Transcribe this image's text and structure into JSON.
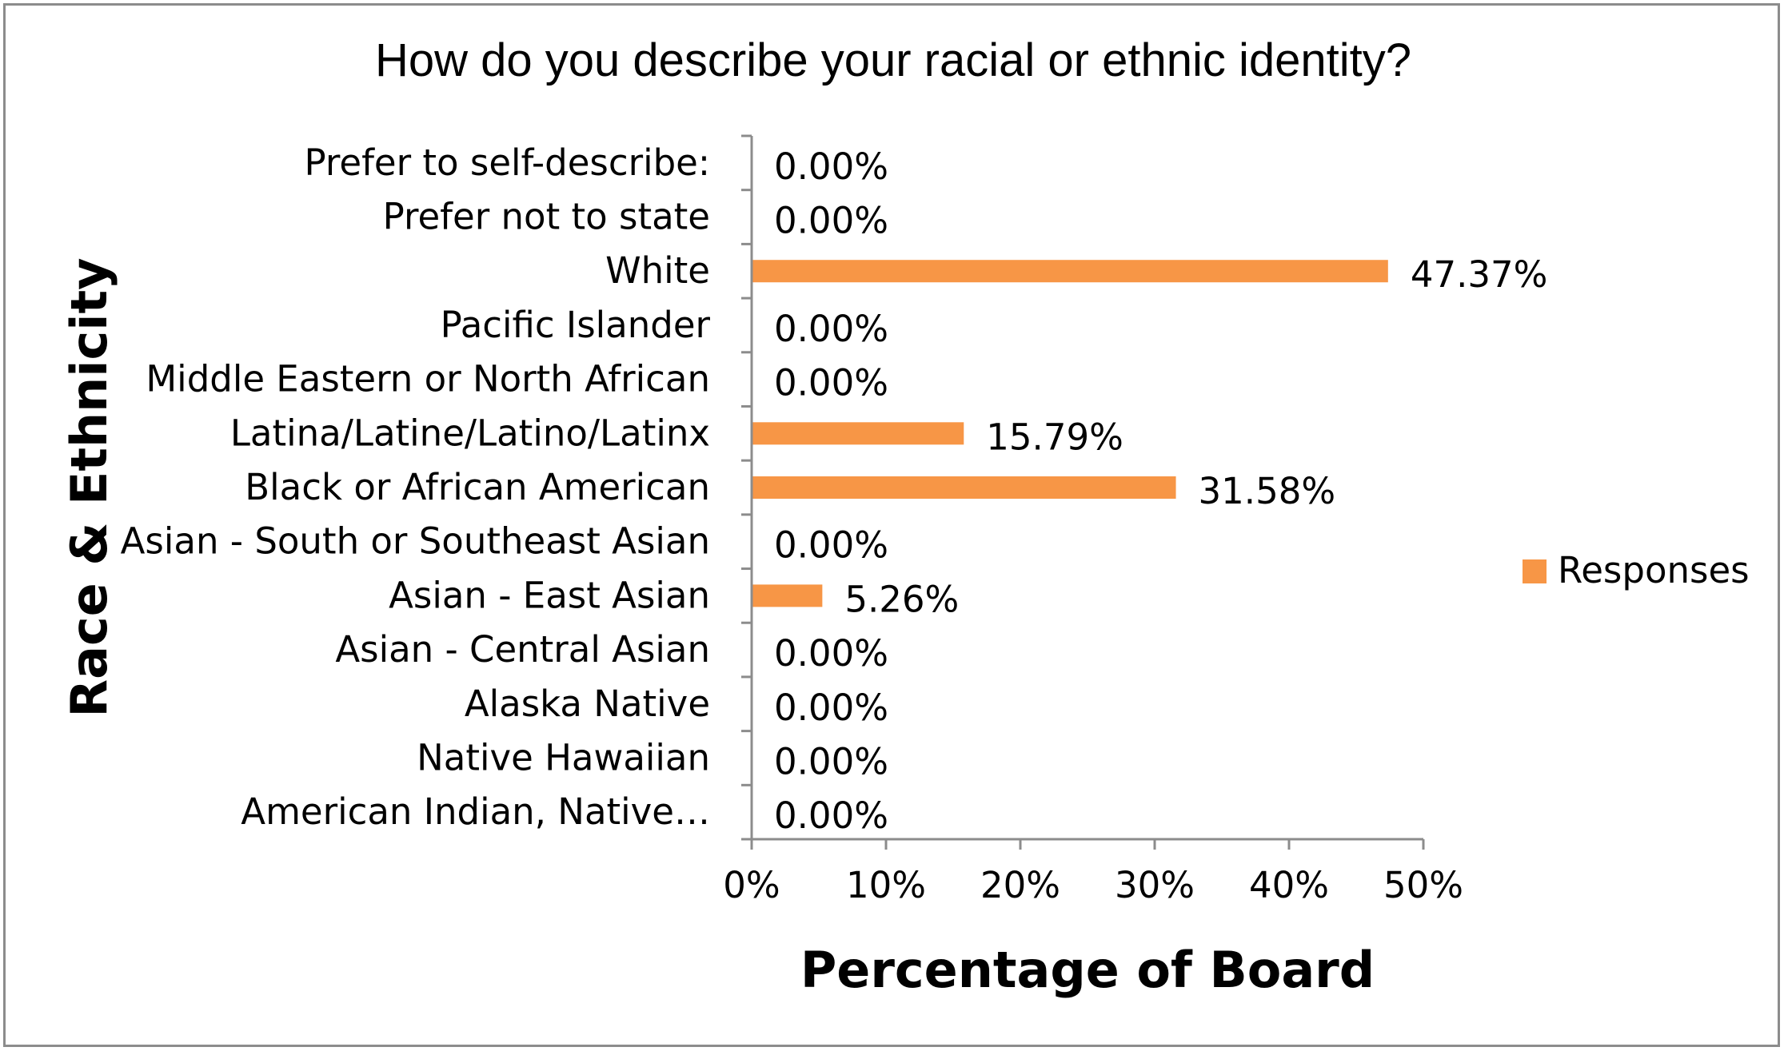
{
  "chart_data": {
    "type": "bar",
    "orientation": "horizontal",
    "title": "How do you describe your racial or ethnic identity?",
    "xlabel": "Percentage of Board",
    "ylabel": "Race & Ethnicity",
    "xlim": [
      0,
      50
    ],
    "x_ticks": [
      "0%",
      "10%",
      "20%",
      "30%",
      "40%",
      "50%"
    ],
    "grid": false,
    "legend_position": "right",
    "categories": [
      "Prefer to self-describe:",
      "Prefer not to state",
      "White",
      "Pacific Islander",
      "Middle Eastern or North African",
      "Latina/Latine/Latino/Latinx",
      "Black or African American",
      "Asian - South or Southeast Asian",
      "Asian - East Asian",
      "Asian  - Central Asian",
      "Alaska Native",
      "Native Hawaiian",
      "American Indian, Native…"
    ],
    "series": [
      {
        "name": "Responses",
        "color": "#f79646",
        "values": [
          0,
          0,
          47.37,
          0,
          0,
          15.79,
          31.58,
          0,
          5.26,
          0,
          0,
          0,
          0
        ],
        "data_labels": [
          "0.00%",
          "0.00%",
          "47.37%",
          "0.00%",
          "0.00%",
          "15.79%",
          "31.58%",
          "0.00%",
          "5.26%",
          "0.00%",
          "0.00%",
          "0.00%",
          "0.00%"
        ]
      }
    ]
  }
}
